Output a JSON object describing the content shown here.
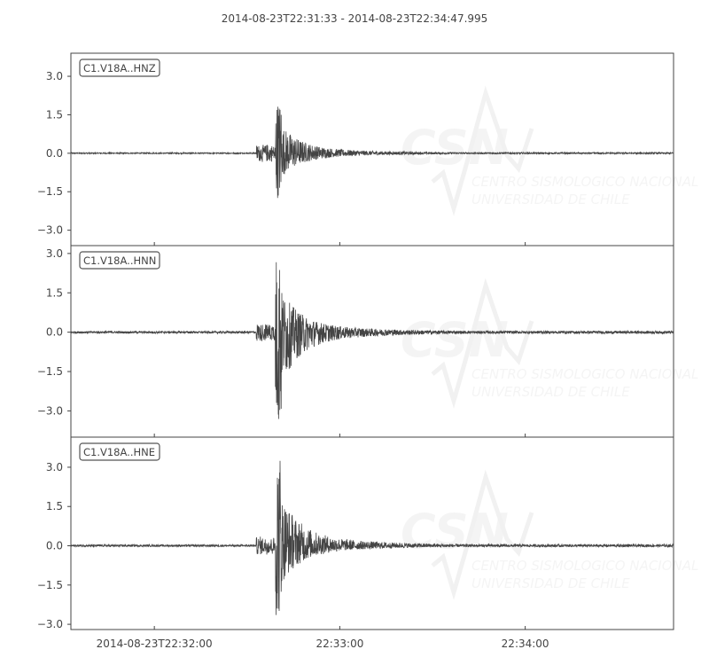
{
  "chart_data": {
    "type": "line",
    "title": "2014-08-23T22:31:33  -  2014-08-23T22:34:47.995",
    "time_range": [
      "2014-08-23T22:31:33",
      "2014-08-23T22:34:47.995"
    ],
    "x_ticks": [
      {
        "time": "2014-08-23T22:32:00",
        "label": "2014-08-23T22:32:00"
      },
      {
        "time": "2014-08-23T22:33:00",
        "label": "22:33:00"
      },
      {
        "time": "2014-08-23T22:34:00",
        "label": "22:34:00"
      }
    ],
    "line_color": "#444444",
    "grid": false,
    "series": [
      {
        "name": "C1.V18A..HNZ",
        "ylim": [
          -3.6,
          3.9
        ],
        "yticks": [
          3.0,
          1.5,
          0.0,
          -1.5,
          -3.0
        ],
        "ytick_labels": [
          "3.0",
          "1.5",
          "0.0",
          "−1.5",
          "−3.0"
        ],
        "p_arrival": "2014-08-23T22:32:33",
        "s_arrival": "2014-08-23T22:32:40",
        "peak_max": 2.1,
        "peak_min": -1.75
      },
      {
        "name": "C1.V18A..HNN",
        "ylim": [
          -4.0,
          3.3
        ],
        "yticks": [
          3.0,
          1.5,
          0.0,
          -1.5,
          -3.0
        ],
        "ytick_labels": [
          "3.0",
          "1.5",
          "0.0",
          "−1.5",
          "−3.0"
        ],
        "p_arrival": "2014-08-23T22:32:33",
        "s_arrival": "2014-08-23T22:32:40",
        "peak_max": 3.0,
        "peak_min": -3.7
      },
      {
        "name": "C1.V18A..HNE",
        "ylim": [
          -3.2,
          4.15
        ],
        "yticks": [
          3.0,
          1.5,
          0.0,
          -1.5,
          -3.0
        ],
        "ytick_labels": [
          "3.0",
          "1.5",
          "0.0",
          "−1.5",
          "−3.0"
        ],
        "p_arrival": "2014-08-23T22:32:33",
        "s_arrival": "2014-08-23T22:32:40",
        "peak_max": 3.7,
        "peak_min": -2.7
      }
    ]
  },
  "watermark": {
    "logo": "CSN",
    "line1": "CENTRO SISMOLOGICO NACIONAL",
    "line2": "UNIVERSIDAD DE CHILE"
  }
}
